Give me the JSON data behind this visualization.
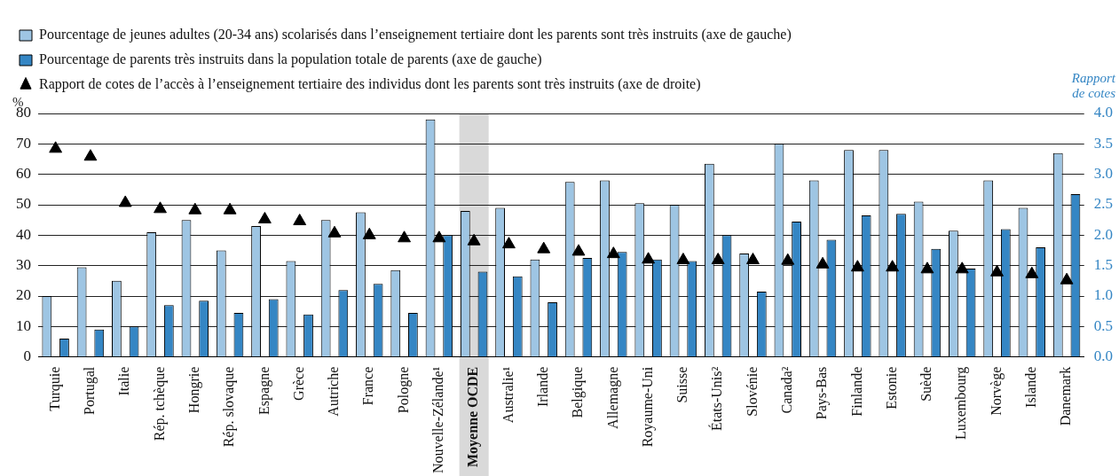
{
  "chart_data": {
    "type": "bar",
    "ylabel": "%",
    "y2label": "Rapport\nde cotes",
    "categories": [
      "Turquie",
      "Portugal",
      "Italie",
      "Rép. tchèque",
      "Hongrie",
      "Rép. slovaque",
      "Espagne",
      "Grèce",
      "Autriche",
      "France",
      "Pologne",
      "Nouvelle-Zélande¹",
      "Moyenne OCDE",
      "Australie¹",
      "Irlande",
      "Belgique",
      "Allemagne",
      "Royaume-Uni",
      "Suisse",
      "États-Unis²",
      "Slovénie",
      "Canada²",
      "Pays-Bas",
      "Finlande",
      "Estonie",
      "Suède",
      "Luxembourg",
      "Norvège",
      "Islande",
      "Danemark"
    ],
    "series": [
      {
        "name": "Pourcentage de jeunes adultes (20-34 ans) scolarisés dans l’enseignement tertiaire dont les parents sont très instruits (axe de gauche)",
        "color": "#9ec5e3",
        "values": [
          20,
          29.5,
          25,
          41,
          45,
          35,
          43,
          31.5,
          45,
          47.5,
          28.5,
          78,
          48,
          49,
          32,
          57.5,
          58,
          50.5,
          50,
          63.5,
          34,
          70,
          58,
          68,
          68,
          51,
          41.5,
          58,
          49,
          67
        ]
      },
      {
        "name": "Pourcentage de parents très instruits dans la population totale de parents (axe de gauche)",
        "color": "#3586c4",
        "values": [
          6,
          9,
          10,
          17,
          18.5,
          14.5,
          19,
          14,
          22,
          24,
          14.5,
          40,
          28,
          26.5,
          18,
          32.5,
          34.5,
          32,
          31.5,
          40,
          21.5,
          44.5,
          38.5,
          46.5,
          47,
          35.5,
          29,
          42,
          36,
          53.5
        ]
      },
      {
        "name": "Rapport de cotes de l’accès à l’enseignement tertiaire des individus dont les parents sont très instruits (axe de droite)",
        "type": "scatter",
        "axis": "y2",
        "marker": "triangle",
        "color": "#000000",
        "values": [
          3.42,
          3.29,
          2.53,
          2.43,
          2.41,
          2.41,
          2.26,
          2.23,
          2.03,
          2.0,
          1.95,
          1.95,
          1.9,
          1.85,
          1.77,
          1.73,
          1.69,
          1.6,
          1.59,
          1.59,
          1.59,
          1.58,
          1.52,
          1.47,
          1.47,
          1.44,
          1.44,
          1.39,
          1.36,
          1.26
        ]
      }
    ],
    "ylim": [
      0,
      80
    ],
    "yticks": [
      0,
      10,
      20,
      30,
      40,
      50,
      60,
      70,
      80
    ],
    "y2lim": [
      0,
      4
    ],
    "y2ticks": [
      {
        "value": 0,
        "label": "0.0"
      },
      {
        "value": 0.5,
        "label": "0.5"
      },
      {
        "value": 1,
        "label": "1.0"
      },
      {
        "value": 1.5,
        "label": "1.5"
      },
      {
        "value": 2,
        "label": "2.0"
      },
      {
        "value": 2.5,
        "label": "2.5"
      },
      {
        "value": 3,
        "label": "3.0"
      },
      {
        "value": 3.5,
        "label": "3.5"
      },
      {
        "value": 4,
        "label": "4.0"
      }
    ],
    "bands": [
      {
        "axis": "x",
        "from": "Moyenne OCDE",
        "to": "Moyenne OCDE",
        "color": "#d9d9d9"
      }
    ],
    "grid": "y",
    "legend": "top"
  }
}
